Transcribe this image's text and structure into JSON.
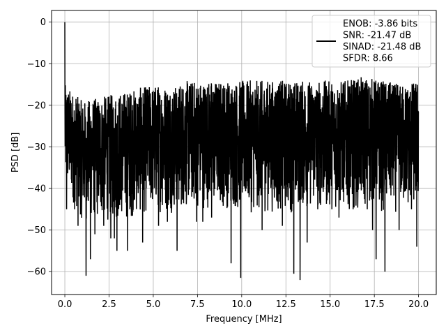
{
  "chart_data": {
    "type": "line",
    "title": "",
    "xlabel": "Frequency [MHz]",
    "ylabel": "PSD [dB]",
    "xlim": [
      -0.75,
      21.0
    ],
    "ylim": [
      -65.5,
      2.8
    ],
    "xticks": [
      0.0,
      2.5,
      5.0,
      7.5,
      10.0,
      12.5,
      15.0,
      17.5,
      20.0
    ],
    "xtick_labels": [
      "0.0",
      "2.5",
      "5.0",
      "7.5",
      "10.0",
      "12.5",
      "15.0",
      "17.5",
      "20.0"
    ],
    "yticks": [
      0,
      -10,
      -20,
      -30,
      -40,
      -50,
      -60
    ],
    "ytick_labels": [
      "0",
      "−10",
      "−20",
      "−30",
      "−40",
      "−50",
      "−60"
    ],
    "grid": true,
    "legend_position": "top-right",
    "series": [
      {
        "color": "#000000",
        "x_range": [
          0.0,
          20.0
        ],
        "peak": {
          "x": 0.0,
          "y": 0.0
        },
        "upper_envelope": {
          "x": [
            0.0,
            1.0,
            2.0,
            3.0,
            4.0,
            5.0,
            6.0,
            7.0,
            8.0,
            9.0,
            10.0,
            11.0,
            12.0,
            13.0,
            14.0,
            15.0,
            16.0,
            17.0,
            18.0,
            19.0,
            20.0
          ],
          "y": [
            -15,
            -19,
            -18,
            -17,
            -16,
            -15,
            -15,
            -14,
            -14,
            -14,
            -14,
            -14,
            -14,
            -14,
            -14,
            -14,
            -14,
            -13,
            -14,
            -15,
            -14
          ]
        },
        "lower_envelope": {
          "x": [
            0.0,
            1.0,
            2.0,
            3.0,
            4.0,
            5.0,
            6.0,
            7.0,
            8.0,
            9.0,
            10.0,
            11.0,
            12.0,
            13.0,
            14.0,
            15.0,
            16.0,
            17.0,
            18.0,
            19.0,
            20.0
          ],
          "y": [
            -40,
            -48,
            -48,
            -48,
            -47,
            -46,
            -46,
            -45,
            -45,
            -45,
            -46,
            -46,
            -46,
            -46,
            -45,
            -46,
            -45,
            -45,
            -46,
            -46,
            -45
          ]
        },
        "dips": [
          {
            "x": 0.1,
            "y": -45
          },
          {
            "x": 0.55,
            "y": -45
          },
          {
            "x": 0.75,
            "y": -49
          },
          {
            "x": 1.2,
            "y": -61
          },
          {
            "x": 1.45,
            "y": -57
          },
          {
            "x": 1.7,
            "y": -51
          },
          {
            "x": 2.2,
            "y": -49
          },
          {
            "x": 2.6,
            "y": -52
          },
          {
            "x": 2.8,
            "y": -52
          },
          {
            "x": 2.95,
            "y": -55
          },
          {
            "x": 3.55,
            "y": -55
          },
          {
            "x": 4.4,
            "y": -53
          },
          {
            "x": 5.3,
            "y": -49
          },
          {
            "x": 5.8,
            "y": -48
          },
          {
            "x": 6.35,
            "y": -55
          },
          {
            "x": 7.45,
            "y": -48
          },
          {
            "x": 7.8,
            "y": -48
          },
          {
            "x": 8.3,
            "y": -47
          },
          {
            "x": 9.4,
            "y": -58
          },
          {
            "x": 9.95,
            "y": -61.5
          },
          {
            "x": 11.15,
            "y": -50
          },
          {
            "x": 12.3,
            "y": -49
          },
          {
            "x": 12.95,
            "y": -60.5
          },
          {
            "x": 13.3,
            "y": -62
          },
          {
            "x": 13.7,
            "y": -53
          },
          {
            "x": 14.3,
            "y": -45
          },
          {
            "x": 15.1,
            "y": -45
          },
          {
            "x": 15.5,
            "y": -47
          },
          {
            "x": 16.3,
            "y": -45
          },
          {
            "x": 17.1,
            "y": -45
          },
          {
            "x": 17.4,
            "y": -50
          },
          {
            "x": 17.6,
            "y": -57
          },
          {
            "x": 18.1,
            "y": -60
          },
          {
            "x": 18.9,
            "y": -50
          },
          {
            "x": 19.6,
            "y": -45
          },
          {
            "x": 19.9,
            "y": -54
          }
        ]
      }
    ],
    "legend": {
      "label_lines": [
        "ENOB: -3.86 bits",
        "SNR: -21.47 dB",
        "SINAD: -21.48 dB",
        "SFDR: 8.66"
      ]
    }
  }
}
